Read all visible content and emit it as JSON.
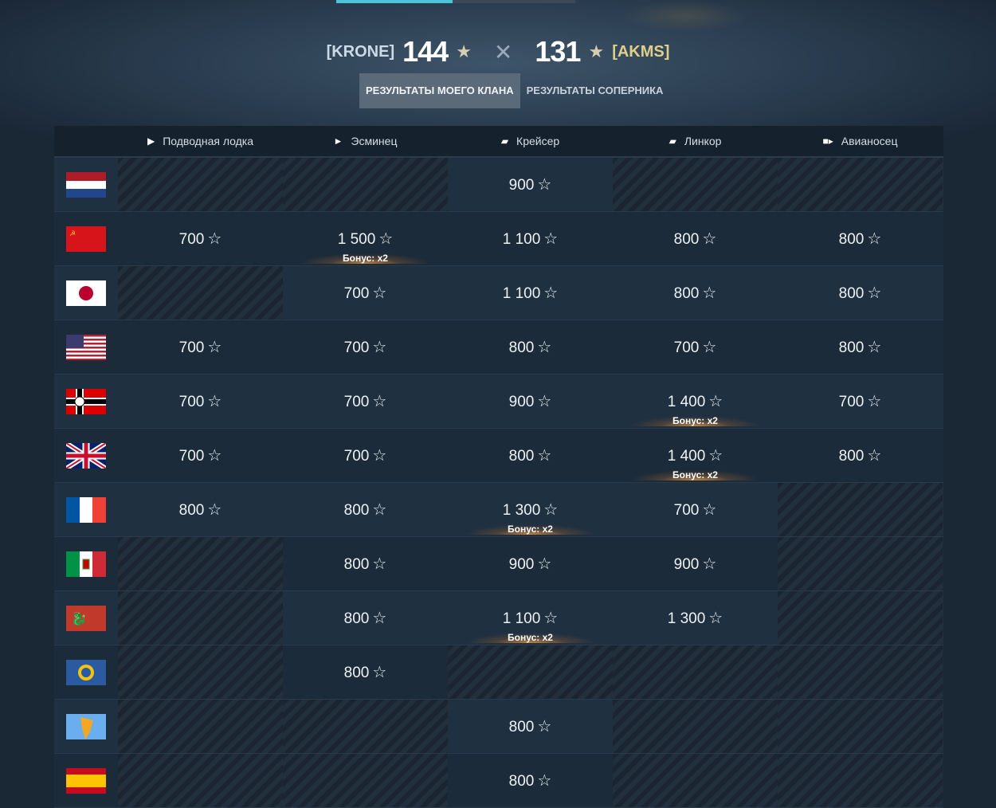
{
  "header": {
    "my_clan": "[KRONE]",
    "my_score": "144",
    "enemy_score": "131",
    "enemy_clan": "[AKMS]",
    "colors": {
      "accent": "#4fc3d8",
      "enemy_tag": "#e0cf8a"
    }
  },
  "tabs": [
    {
      "label": "РЕЗУЛЬТАТЫ МОЕГО КЛАНА",
      "active": true
    },
    {
      "label": "РЕЗУЛЬТАТЫ СОПЕРНИКА",
      "active": false
    }
  ],
  "columns": [
    {
      "label": "Подводная лодка",
      "icon": "submarine-icon"
    },
    {
      "label": "Эсминец",
      "icon": "destroyer-icon"
    },
    {
      "label": "Крейсер",
      "icon": "cruiser-icon"
    },
    {
      "label": "Линкор",
      "icon": "battleship-icon"
    },
    {
      "label": "Авианосец",
      "icon": "carrier-icon"
    }
  ],
  "bonus_label": "Бонус: x2",
  "rows": [
    {
      "nation": "netherlands",
      "cells": [
        null,
        null,
        {
          "v": "900"
        },
        null,
        null
      ]
    },
    {
      "nation": "ussr",
      "cells": [
        {
          "v": "700"
        },
        {
          "v": "1 500",
          "bonus": true
        },
        {
          "v": "1 100"
        },
        {
          "v": "800"
        },
        {
          "v": "800"
        }
      ]
    },
    {
      "nation": "japan",
      "cells": [
        null,
        {
          "v": "700"
        },
        {
          "v": "1 100"
        },
        {
          "v": "800"
        },
        {
          "v": "800"
        }
      ]
    },
    {
      "nation": "usa",
      "cells": [
        {
          "v": "700"
        },
        {
          "v": "700"
        },
        {
          "v": "800"
        },
        {
          "v": "700"
        },
        {
          "v": "800"
        }
      ]
    },
    {
      "nation": "germany",
      "cells": [
        {
          "v": "700"
        },
        {
          "v": "700"
        },
        {
          "v": "900"
        },
        {
          "v": "1 400",
          "bonus": true
        },
        {
          "v": "700"
        }
      ]
    },
    {
      "nation": "uk",
      "cells": [
        {
          "v": "700"
        },
        {
          "v": "700"
        },
        {
          "v": "800"
        },
        {
          "v": "1 400",
          "bonus": true
        },
        {
          "v": "800"
        }
      ]
    },
    {
      "nation": "france",
      "cells": [
        {
          "v": "800"
        },
        {
          "v": "800"
        },
        {
          "v": "1 300",
          "bonus": true
        },
        {
          "v": "700"
        },
        null
      ]
    },
    {
      "nation": "italy",
      "cells": [
        null,
        {
          "v": "800"
        },
        {
          "v": "900"
        },
        {
          "v": "900"
        },
        null
      ]
    },
    {
      "nation": "pan-asia",
      "cells": [
        null,
        {
          "v": "800"
        },
        {
          "v": "1 100",
          "bonus": true
        },
        {
          "v": "1 300"
        },
        null
      ]
    },
    {
      "nation": "europe",
      "cells": [
        null,
        {
          "v": "800"
        },
        null,
        null,
        null
      ]
    },
    {
      "nation": "pan-america",
      "cells": [
        null,
        null,
        {
          "v": "800"
        },
        null,
        null
      ]
    },
    {
      "nation": "spain",
      "cells": [
        null,
        null,
        {
          "v": "800"
        },
        null,
        null
      ]
    }
  ]
}
